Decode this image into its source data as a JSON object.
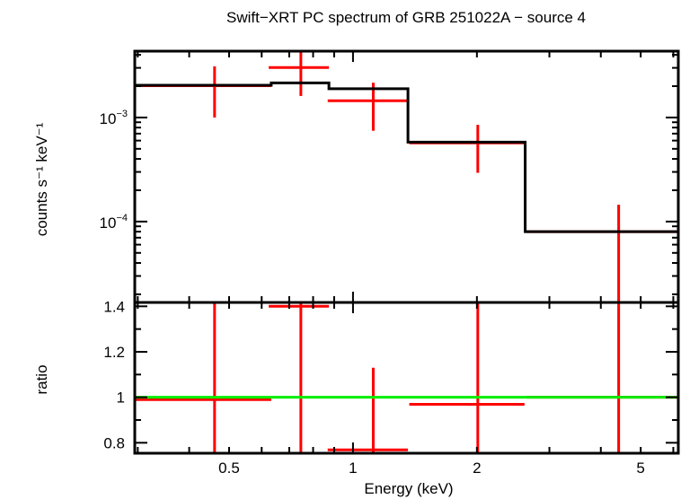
{
  "chart_data": [
    {
      "type": "scatter",
      "panel": "spectrum",
      "title": "Swift−XRT PC spectrum of GRB 251022A − source 4",
      "xlabel": "Energy (keV)",
      "ylabel": "counts s⁻¹ keV⁻¹",
      "xscale": "log",
      "yscale": "log",
      "xlim": [
        0.295,
        6.17
      ],
      "ylim": [
        1.67e-05,
        0.00434
      ],
      "ytick_labels": [
        {
          "value": 0.001,
          "base": "10",
          "exp": "−3"
        },
        {
          "value": 0.0001,
          "base": "10",
          "exp": "−4"
        }
      ],
      "data_color": "#ff0000",
      "model_color": "#000000",
      "data": [
        {
          "x": 0.461,
          "xlo": 0.295,
          "xhi": 0.633,
          "y": 0.00202,
          "ylo": 0.001,
          "yhi": 0.0031
        },
        {
          "x": 0.747,
          "xlo": 0.624,
          "xhi": 0.874,
          "y": 0.00302,
          "ylo": 0.00161,
          "yhi": 0.0045
        },
        {
          "x": 1.12,
          "xlo": 0.868,
          "xhi": 1.36,
          "y": 0.00145,
          "ylo": 0.000746,
          "yhi": 0.00216
        },
        {
          "x": 2.01,
          "xlo": 1.37,
          "xhi": 2.61,
          "y": 0.00057,
          "ylo": 0.000294,
          "yhi": 0.00085
        },
        {
          "x": 4.42,
          "xlo": 2.64,
          "xhi": 6.17,
          "y": 8e-05,
          "ylo": 1e-05,
          "yhi": 0.000145
        }
      ],
      "model": [
        {
          "xlo": 0.295,
          "xhi": 0.633,
          "y": 0.00204
        },
        {
          "xlo": 0.633,
          "xhi": 0.874,
          "y": 0.00215
        },
        {
          "xlo": 0.874,
          "xhi": 1.36,
          "y": 0.00189
        },
        {
          "xlo": 1.36,
          "xhi": 2.62,
          "y": 0.00058
        },
        {
          "xlo": 2.62,
          "xhi": 6.17,
          "y": 8e-05
        }
      ]
    },
    {
      "type": "scatter",
      "panel": "ratio",
      "xlabel": "Energy (keV)",
      "ylabel": "ratio",
      "xscale": "log",
      "yscale": "linear",
      "xlim": [
        0.295,
        6.17
      ],
      "ylim": [
        0.754,
        1.417
      ],
      "xtick_labels": [
        "0.5",
        "1",
        "2",
        "5"
      ],
      "xtick_values": [
        0.5,
        1,
        2,
        5
      ],
      "ytick_labels": [
        "0.8",
        "1",
        "1.2",
        "1.4"
      ],
      "ytick_values": [
        0.8,
        1.0,
        1.2,
        1.4
      ],
      "reference_line": {
        "y": 1.0,
        "color": "#00ee00"
      },
      "data_color": "#ff0000",
      "data": [
        {
          "x": 0.461,
          "xlo": 0.295,
          "xhi": 0.633,
          "y": 0.99,
          "ylo": 0.49,
          "yhi": 1.52
        },
        {
          "x": 0.747,
          "xlo": 0.624,
          "xhi": 0.874,
          "y": 1.4,
          "ylo": 0.75,
          "yhi": 2.1
        },
        {
          "x": 1.12,
          "xlo": 0.868,
          "xhi": 1.36,
          "y": 0.769,
          "ylo": 0.5,
          "yhi": 1.13
        },
        {
          "x": 2.01,
          "xlo": 1.37,
          "xhi": 2.61,
          "y": 0.969,
          "ylo": 0.5,
          "yhi": 1.5
        },
        {
          "x": 4.42,
          "xlo": 2.64,
          "xhi": 6.17,
          "y": 1.0,
          "ylo": 0.1,
          "yhi": 1.8
        }
      ]
    }
  ]
}
